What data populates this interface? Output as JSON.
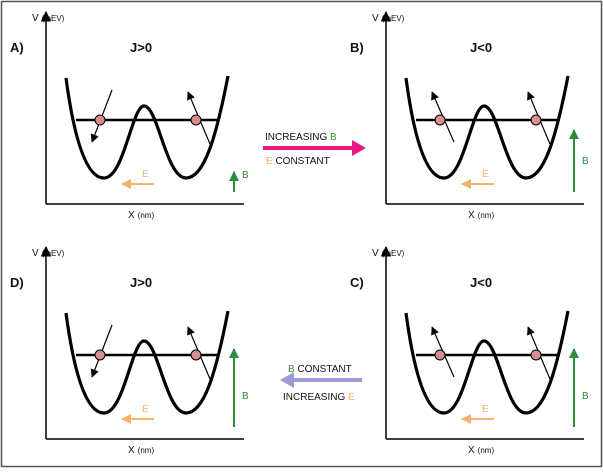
{
  "colors": {
    "frame": "#555555",
    "line": "#000000",
    "E": "#f6b26b",
    "B": "#2e8b3a",
    "pink_arrow": "#e8197f",
    "purple_arrow": "#9b9bd6",
    "spin_fill": "#d98c96"
  },
  "axis": {
    "y_label": "V",
    "y_unit": "(mEV)",
    "x_label": "X",
    "x_unit": "(nm)"
  },
  "panels": [
    {
      "id": "A",
      "label": "A)",
      "J": "J>0",
      "B_label": "B",
      "E_label": "E",
      "B_strength": "small",
      "spin_config": "antiparallel"
    },
    {
      "id": "B",
      "label": "B)",
      "J": "J<0",
      "B_label": "B",
      "E_label": "E",
      "B_strength": "large",
      "spin_config": "parallel"
    },
    {
      "id": "D",
      "label": "D)",
      "J": "J>0",
      "B_label": "B",
      "E_label": "E",
      "B_strength": "large",
      "spin_config": "antiparallel"
    },
    {
      "id": "C",
      "label": "C)",
      "J": "J<0",
      "B_label": "B",
      "E_label": "E",
      "B_strength": "large",
      "spin_config": "parallel"
    }
  ],
  "transitions": {
    "top": {
      "line1_text": "INCREASING",
      "line1_highlight": "B",
      "line2_highlight": "E",
      "line2_text": "CONSTANT"
    },
    "bottom": {
      "line1_highlight": "B",
      "line1_text": "CONSTANT",
      "line2_text": "INCREASING",
      "line2_highlight": "E"
    }
  }
}
